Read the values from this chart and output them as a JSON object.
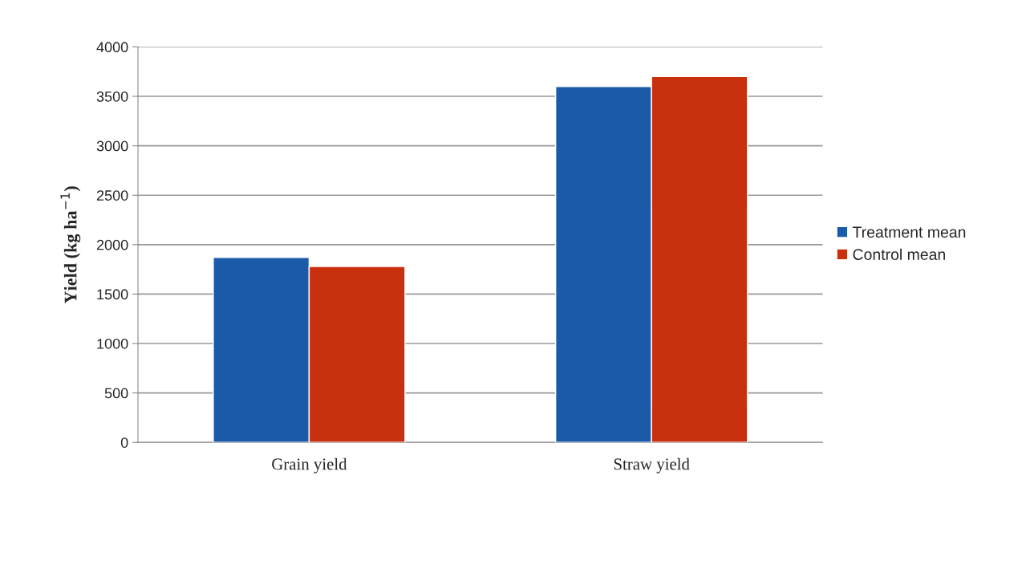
{
  "chart_data": {
    "type": "bar",
    "ylabel": "Yield (kg ha$^{−1}$)",
    "categories": [
      "Grain yield",
      "Straw yield"
    ],
    "series": [
      {
        "name": "Treatment mean",
        "color": "#1a5aa8",
        "values": [
          1870,
          3600
        ]
      },
      {
        "name": "Control mean",
        "color": "#c8300e",
        "values": [
          1780,
          3700
        ]
      }
    ],
    "ylim": [
      0,
      4000
    ],
    "yticks": [
      0,
      500,
      1000,
      1500,
      2000,
      2500,
      3000,
      3500,
      4000
    ],
    "grid": "y",
    "legend": "right"
  }
}
